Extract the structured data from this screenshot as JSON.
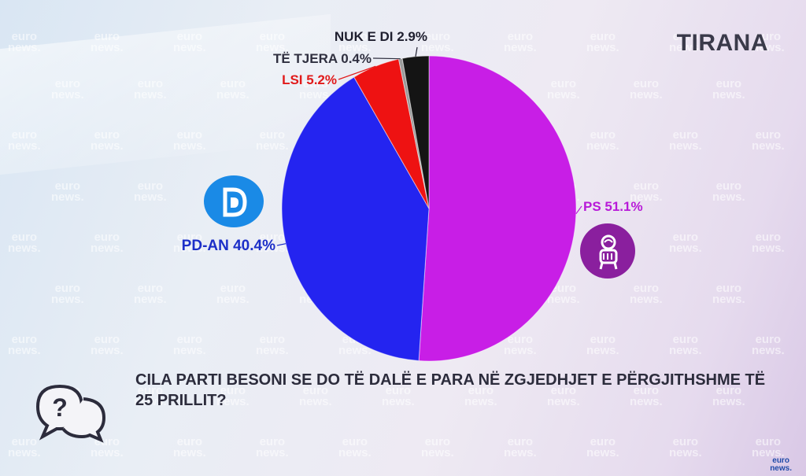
{
  "region": "TIRANA",
  "question": "CILA PARTI BESONI SE DO TË DALË E PARA NË ZGJEDHJET E PËRGJITHSHME TË 25 PRILLIT?",
  "watermark_text": [
    "euro",
    "news."
  ],
  "colors": {
    "ps": "#c81ee6",
    "pd": "#2424f0",
    "lsi": "#ee1212",
    "others": "#9a9a9a",
    "dont_know": "#141414",
    "pd_badge": "#1a8ae6",
    "ps_badge": "#8a1f9e"
  },
  "icons": {
    "pd_logo": "pd-logo-icon",
    "ps_logo": "ps-rose-fist-icon",
    "question": "question-bubbles-icon"
  },
  "chart_data": {
    "type": "pie",
    "title": "",
    "slices": [
      {
        "key": "ps",
        "label": "PS 51.1%",
        "value": 51.1,
        "color": "#c81ee6"
      },
      {
        "key": "pd",
        "label": "PD-AN 40.4%",
        "value": 40.4,
        "color": "#2424f0"
      },
      {
        "key": "lsi",
        "label": "LSI 5.2%",
        "value": 5.2,
        "color": "#ee1212"
      },
      {
        "key": "others",
        "label": "TË TJERA 0.4%",
        "value": 0.4,
        "color": "#9a9a9a"
      },
      {
        "key": "dont_know",
        "label": "NUK E DI 2.9%",
        "value": 2.9,
        "color": "#141414"
      }
    ]
  }
}
